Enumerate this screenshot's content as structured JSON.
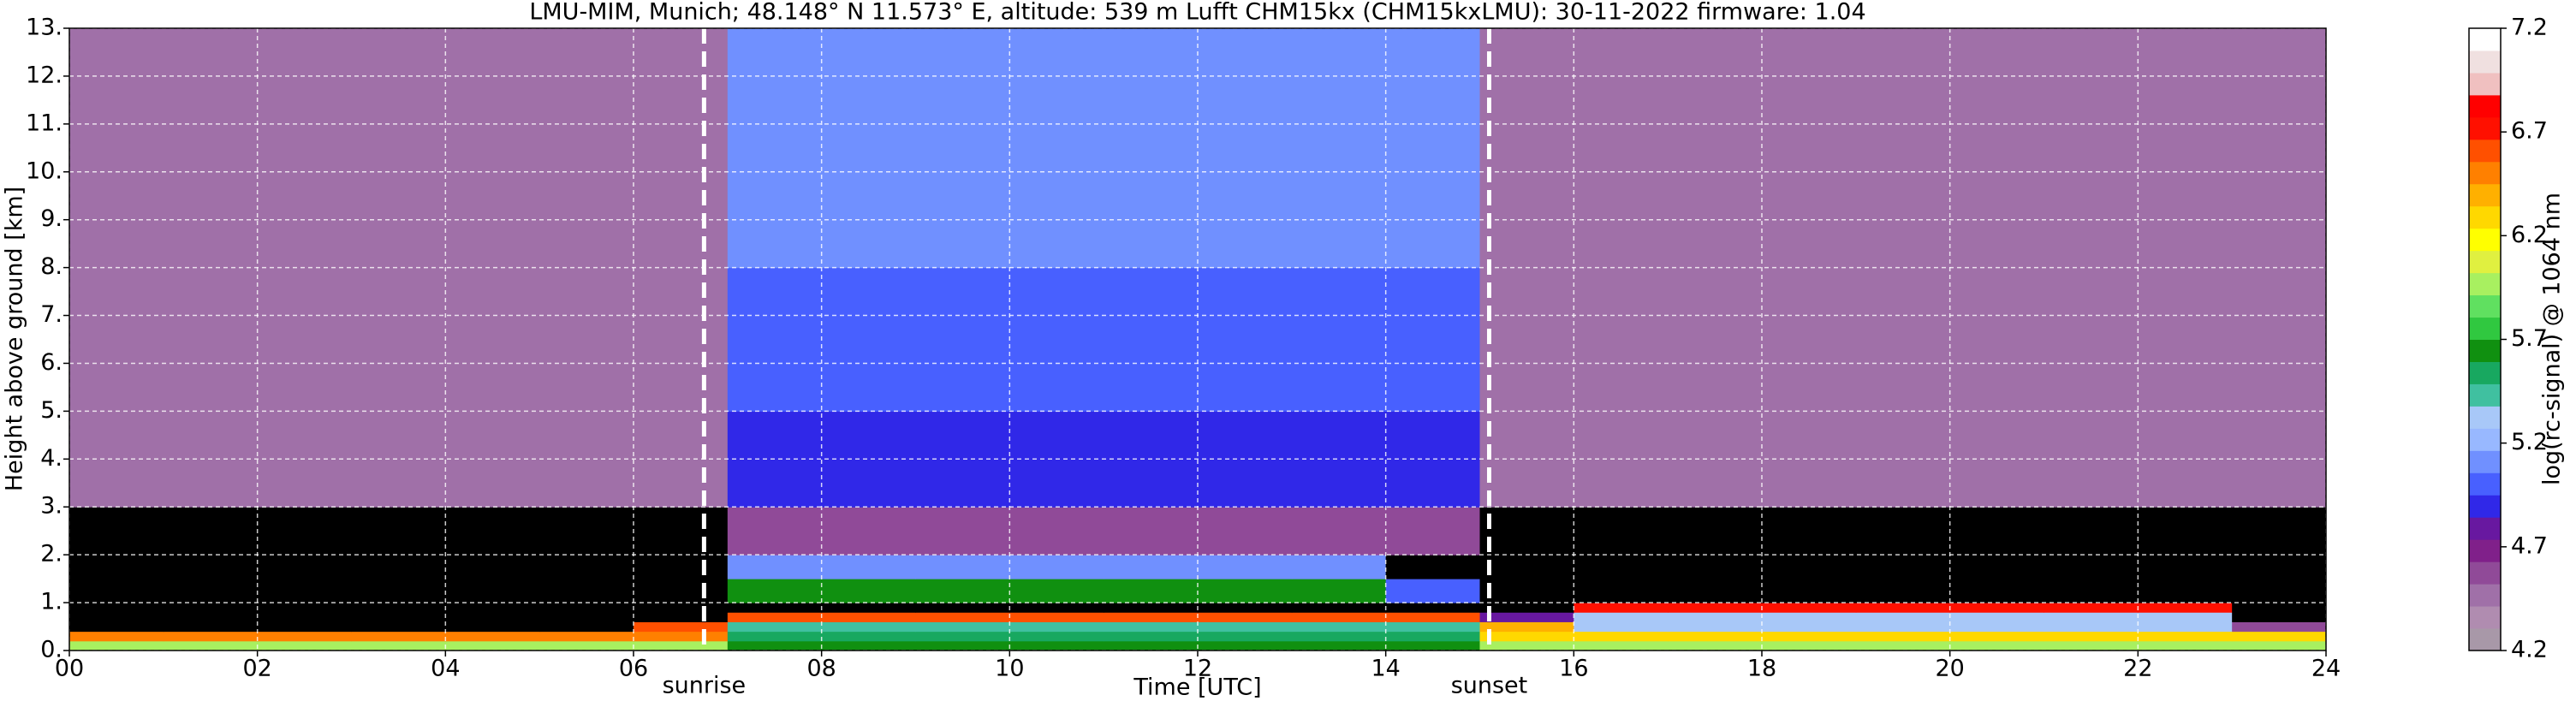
{
  "chart_data": {
    "type": "heatmap",
    "title": "LMU-MIM, Munich; 48.148° N 11.573° E, altitude: 539 m    Lufft CHM15kx (CHM15kxLMU): 30-11-2022    firmware: 1.04",
    "x_label": "Time [UTC]",
    "y_label": "Height above ground [km]",
    "colorbar_label": "log(rc-signal) @ 1064 nm",
    "xlim": [
      0,
      24
    ],
    "ylim": [
      0,
      13
    ],
    "xticks": [
      {
        "value": 0,
        "label": "00"
      },
      {
        "value": 2,
        "label": "02"
      },
      {
        "value": 4,
        "label": "04"
      },
      {
        "value": 6,
        "label": "06"
      },
      {
        "value": 8,
        "label": "08"
      },
      {
        "value": 10,
        "label": "10"
      },
      {
        "value": 12,
        "label": "12"
      },
      {
        "value": 14,
        "label": "14"
      },
      {
        "value": 16,
        "label": "16"
      },
      {
        "value": 18,
        "label": "18"
      },
      {
        "value": 20,
        "label": "20"
      },
      {
        "value": 22,
        "label": "22"
      },
      {
        "value": 24,
        "label": "24"
      }
    ],
    "yticks": [
      {
        "value": 0,
        "label": "0."
      },
      {
        "value": 1,
        "label": "1."
      },
      {
        "value": 2,
        "label": "2."
      },
      {
        "value": 3,
        "label": "3."
      },
      {
        "value": 4,
        "label": "4."
      },
      {
        "value": 5,
        "label": "5."
      },
      {
        "value": 6,
        "label": "6."
      },
      {
        "value": 7,
        "label": "7."
      },
      {
        "value": 8,
        "label": "8."
      },
      {
        "value": 9,
        "label": "9."
      },
      {
        "value": 10,
        "label": "10."
      },
      {
        "value": 11,
        "label": "11."
      },
      {
        "value": 12,
        "label": "12."
      },
      {
        "value": 13,
        "label": "13."
      }
    ],
    "grid": true,
    "x_edges": [
      0,
      1,
      2,
      3,
      4,
      5,
      6,
      7,
      8,
      9,
      10,
      11,
      12,
      13,
      14,
      15,
      16,
      17,
      18,
      19,
      20,
      21,
      22,
      23,
      24
    ],
    "y_edges": [
      0,
      0.2,
      0.4,
      0.6,
      0.8,
      1,
      1.5,
      2,
      3,
      5,
      8,
      13
    ],
    "z": [
      [
        6.0,
        6.0,
        6.0,
        6.0,
        6.0,
        6.0,
        6.0,
        5.6,
        5.6,
        5.6,
        5.6,
        5.6,
        5.6,
        5.6,
        5.6,
        6.0,
        6.0,
        6.0,
        6.0,
        6.0,
        6.0,
        6.0,
        6.0,
        6.0
      ],
      [
        6.5,
        6.5,
        6.5,
        6.5,
        6.5,
        6.5,
        6.5,
        5.5,
        5.5,
        5.5,
        5.5,
        5.5,
        5.5,
        5.5,
        5.5,
        6.3,
        6.3,
        6.3,
        6.3,
        6.3,
        6.3,
        6.3,
        6.3,
        6.3
      ],
      [
        3.9,
        3.9,
        3.9,
        3.9,
        3.9,
        3.9,
        6.6,
        5.4,
        5.4,
        5.4,
        5.4,
        5.4,
        5.4,
        5.4,
        5.4,
        6.4,
        5.3,
        5.3,
        5.3,
        5.3,
        5.3,
        5.3,
        5.3,
        4.6
      ],
      [
        3.9,
        3.9,
        3.9,
        3.9,
        3.9,
        3.9,
        3.9,
        6.6,
        6.6,
        6.6,
        6.6,
        6.6,
        6.6,
        6.6,
        6.6,
        4.8,
        5.3,
        5.3,
        5.3,
        5.3,
        5.3,
        5.3,
        5.3,
        3.9
      ],
      [
        3.9,
        3.9,
        3.9,
        3.9,
        3.9,
        3.9,
        3.9,
        4.0,
        4.0,
        4.0,
        4.0,
        4.0,
        4.0,
        4.0,
        4.0,
        3.9,
        6.7,
        6.7,
        6.7,
        6.7,
        6.7,
        6.7,
        6.7,
        3.9
      ],
      [
        3.9,
        3.9,
        3.9,
        3.9,
        3.9,
        3.9,
        3.9,
        5.6,
        5.6,
        5.6,
        5.6,
        5.6,
        5.6,
        5.6,
        5.0,
        3.9,
        3.9,
        3.9,
        3.9,
        3.9,
        3.9,
        3.9,
        3.9,
        3.9
      ],
      [
        3.9,
        3.9,
        3.9,
        3.9,
        3.9,
        3.9,
        3.9,
        5.1,
        5.1,
        5.1,
        5.1,
        5.1,
        5.1,
        5.1,
        3.9,
        3.9,
        3.9,
        3.9,
        3.9,
        3.9,
        3.9,
        3.9,
        3.9,
        3.9
      ],
      [
        4.0,
        4.0,
        4.0,
        4.0,
        4.0,
        4.0,
        4.0,
        4.6,
        4.6,
        4.6,
        4.6,
        4.6,
        4.6,
        4.6,
        4.6,
        4.0,
        4.0,
        4.0,
        4.0,
        4.0,
        4.0,
        4.0,
        4.0,
        4.0
      ],
      [
        4.5,
        4.5,
        4.5,
        4.5,
        4.5,
        4.5,
        4.5,
        4.9,
        4.9,
        4.9,
        4.9,
        4.9,
        4.9,
        4.9,
        4.9,
        4.5,
        4.5,
        4.5,
        4.5,
        4.5,
        4.5,
        4.5,
        4.5,
        4.5
      ],
      [
        4.5,
        4.5,
        4.5,
        4.5,
        4.5,
        4.5,
        4.5,
        5.0,
        5.0,
        5.0,
        5.0,
        5.0,
        5.0,
        5.0,
        5.0,
        4.5,
        4.5,
        4.5,
        4.5,
        4.5,
        4.5,
        4.5,
        4.5,
        4.5
      ],
      [
        4.5,
        4.5,
        4.5,
        4.5,
        4.5,
        4.5,
        4.5,
        5.1,
        5.1,
        5.1,
        5.1,
        5.1,
        5.1,
        5.1,
        5.1,
        4.5,
        4.5,
        4.5,
        4.5,
        4.5,
        4.5,
        4.5,
        4.5,
        4.5
      ]
    ],
    "clim": [
      4.2,
      7.2
    ],
    "cticks": [
      4.2,
      4.7,
      5.2,
      5.7,
      6.2,
      6.7,
      7.2
    ],
    "under_color": "#000000",
    "colormap": [
      "#a898a8",
      "#b08cb0",
      "#a070a8",
      "#904a98",
      "#80208a",
      "#6818a0",
      "#3028e8",
      "#4860ff",
      "#7090ff",
      "#98b8ff",
      "#a8c8f8",
      "#40c0a0",
      "#18a860",
      "#109010",
      "#30c840",
      "#60e060",
      "#a8f060",
      "#e0f040",
      "#ffff00",
      "#ffd800",
      "#ffb000",
      "#ff8000",
      "#ff5000",
      "#ff1000",
      "#ff0000",
      "#f0c0c0",
      "#f0e0e0",
      "#ffffff"
    ],
    "annotations": [
      {
        "text": "sunrise",
        "x": 6.75
      },
      {
        "text": "sunset",
        "x": 15.1
      }
    ]
  }
}
